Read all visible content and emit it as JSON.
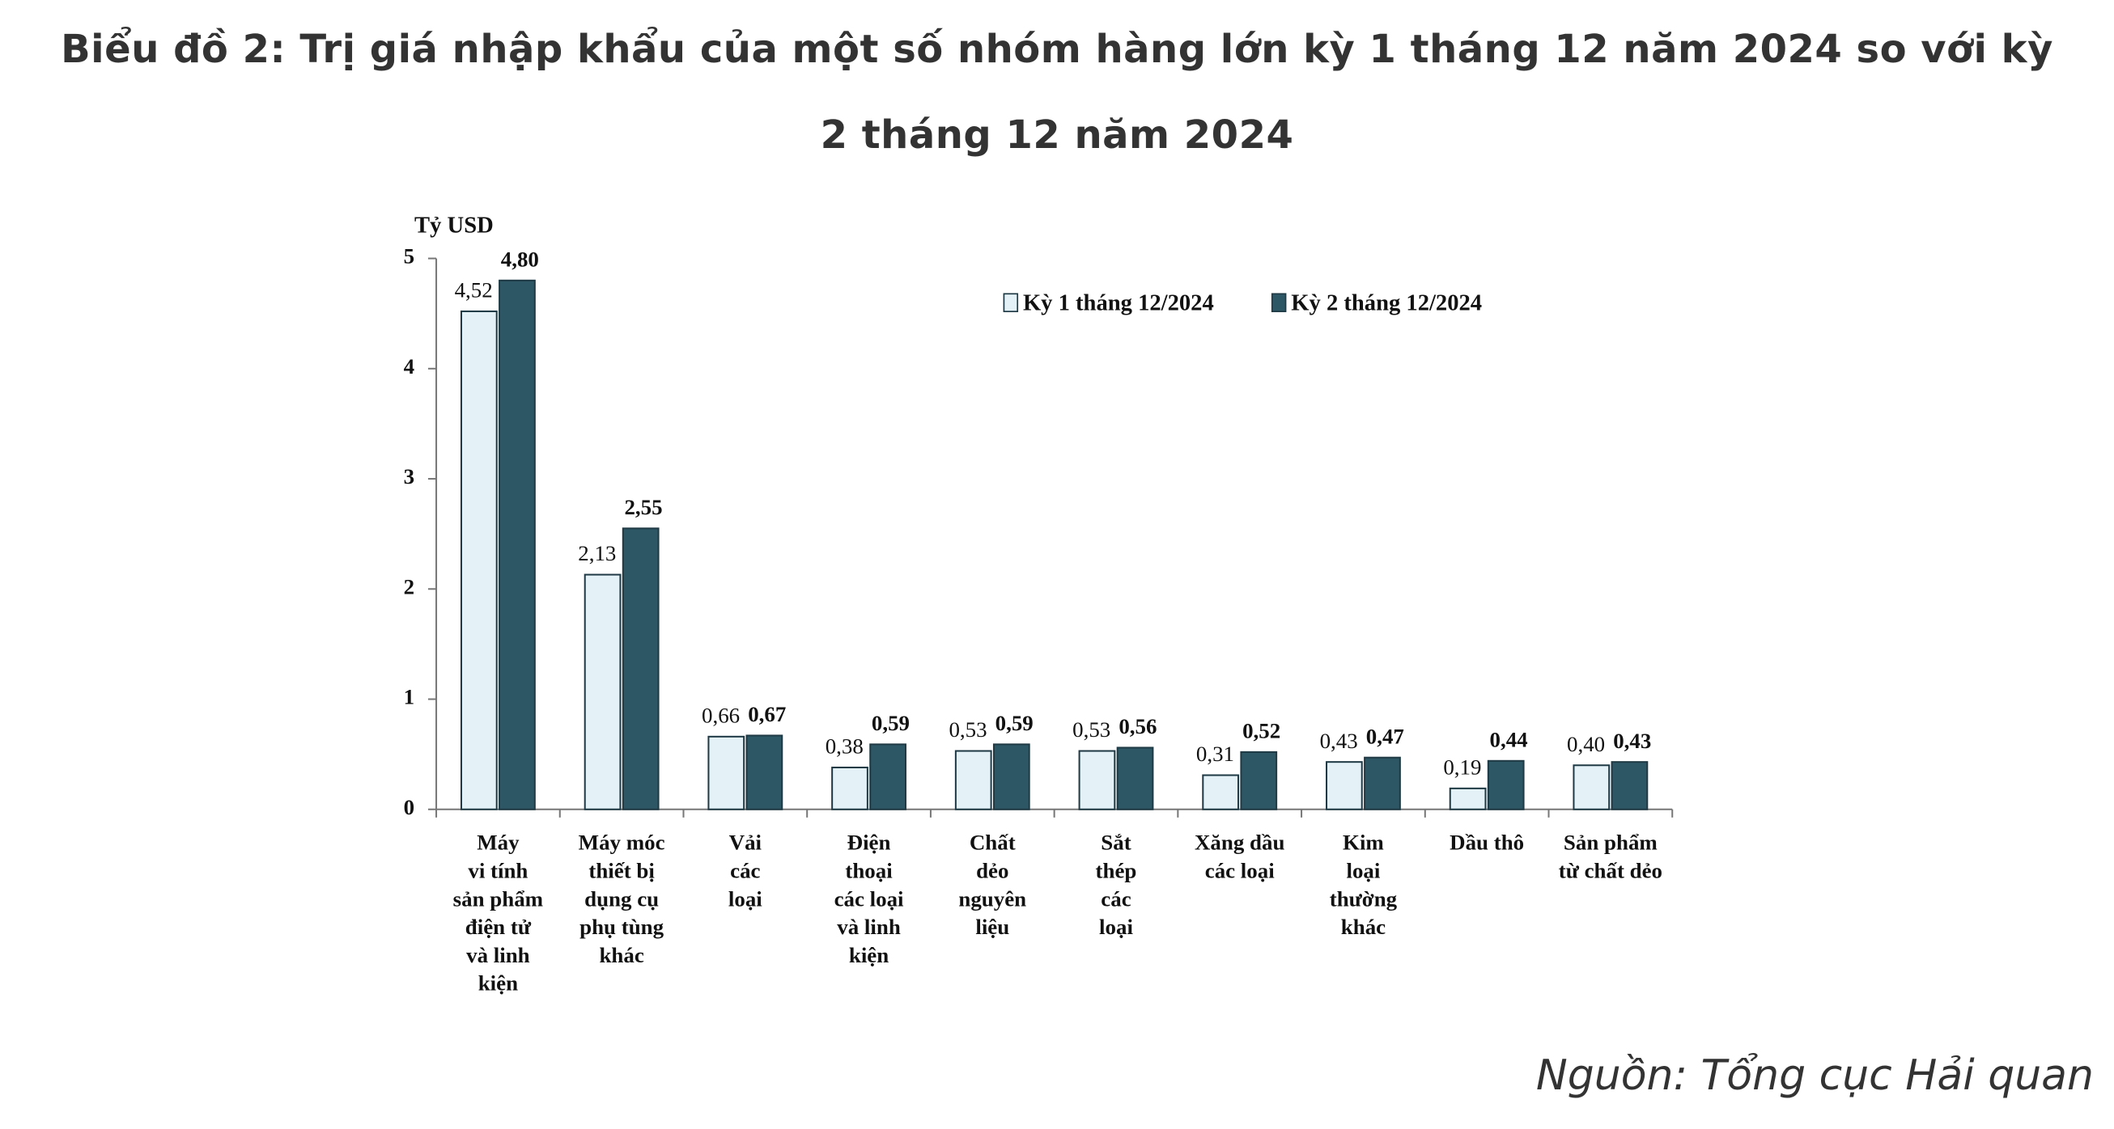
{
  "chart_data": {
    "type": "bar",
    "title": "Biểu đồ 2: Trị giá nhập khẩu của một số nhóm hàng lớn kỳ 1 tháng 12 năm 2024 so với kỳ 2 tháng 12 năm 2024",
    "y_label": "Tỷ USD",
    "source": "Nguồn: Tổng cục Hải quan",
    "categories": [
      [
        "Máy",
        "vi tính",
        "sản phẩm",
        "điện tử",
        "và linh",
        "kiện"
      ],
      [
        "Máy móc",
        "thiết bị",
        "dụng cụ",
        "phụ tùng",
        "khác"
      ],
      [
        "Vải",
        "các",
        "loại"
      ],
      [
        "Điện",
        "thoại",
        "các loại",
        "và linh",
        "kiện"
      ],
      [
        "Chất",
        "dẻo",
        "nguyên",
        "liệu"
      ],
      [
        "Sắt",
        "thép",
        "các",
        "loại"
      ],
      [
        "Xăng dầu",
        "các loại"
      ],
      [
        "Kim",
        "loại",
        "thường",
        "khác"
      ],
      [
        "Dầu thô"
      ],
      [
        "Sản phẩm",
        "từ chất dẻo"
      ]
    ],
    "series": [
      {
        "name": "Kỳ 1 tháng 12/2024",
        "color": "#e4f2f7",
        "values": [
          4.52,
          2.13,
          0.66,
          0.38,
          0.53,
          0.53,
          0.31,
          0.43,
          0.19,
          0.4
        ],
        "value_labels": [
          "4,52",
          "2,13",
          "0,66",
          "0,38",
          "0,53",
          "0,53",
          "0,31",
          "0,43",
          "0,19",
          "0,40"
        ]
      },
      {
        "name": "Kỳ 2 tháng 12/2024",
        "color": "#2e5766",
        "values": [
          4.8,
          2.55,
          0.67,
          0.59,
          0.59,
          0.56,
          0.52,
          0.47,
          0.44,
          0.43
        ],
        "value_labels": [
          "4,80",
          "2,55",
          "0,67",
          "0,59",
          "0,59",
          "0,56",
          "0,52",
          "0,47",
          "0,44",
          "0,43"
        ]
      }
    ],
    "ylim": [
      0,
      5
    ],
    "yticks": [
      0,
      1,
      2,
      3,
      4,
      5
    ],
    "grid": false,
    "legend": "top-right"
  }
}
